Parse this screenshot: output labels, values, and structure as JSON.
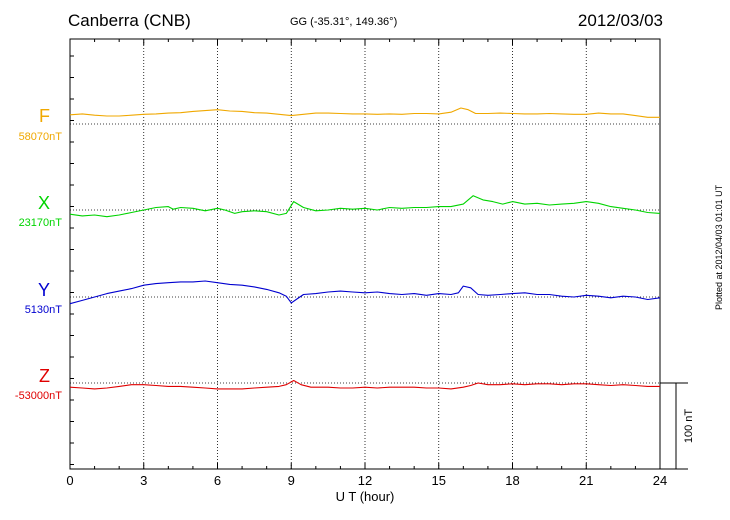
{
  "header": {
    "station": "Canberra (CNB)",
    "coords": "GG (-35.31°, 149.36°)",
    "date": "2012/03/03"
  },
  "plotted_note": "Plotted at 2012/04/03 01:01 UT",
  "scale_bar_label": "100 nT",
  "chart_data": {
    "type": "line",
    "xlabel": "U T (hour)",
    "xlim": [
      0,
      24
    ],
    "xticks": [
      "0",
      "3",
      "6",
      "9",
      "12",
      "15",
      "18",
      "21",
      "24"
    ],
    "grid": true,
    "scale_bar_nT": 100,
    "series": [
      {
        "name": "F",
        "baseline_label": "58070nT",
        "baseline_nT": 58070,
        "color": "#f0a800",
        "x": [
          0,
          0.5,
          1,
          1.5,
          2,
          2.5,
          3,
          3.5,
          4,
          4.5,
          5,
          5.5,
          6,
          6.5,
          7,
          7.5,
          8,
          8.5,
          9,
          9.5,
          10,
          10.5,
          11,
          11.5,
          12,
          12.5,
          13,
          13.5,
          14,
          14.5,
          15,
          15.5,
          15.9,
          16.2,
          16.5,
          17,
          17.5,
          18,
          18.5,
          19,
          19.5,
          20,
          20.5,
          21,
          21.5,
          22,
          22.5,
          23,
          23.5,
          24
        ],
        "y": [
          22,
          24,
          21,
          19,
          19,
          21,
          23,
          24,
          26,
          27,
          30,
          32,
          34,
          31,
          30,
          27,
          26,
          23,
          20,
          23,
          26,
          26,
          25,
          24,
          24,
          23,
          24,
          23,
          25,
          25,
          24,
          28,
          38,
          34,
          25,
          25,
          26,
          25,
          24,
          24,
          25,
          24,
          23,
          23,
          26,
          24,
          24,
          20,
          16,
          16
        ]
      },
      {
        "name": "X",
        "baseline_label": "23170nT",
        "baseline_nT": 23170,
        "color": "#00d400",
        "x": [
          0,
          0.5,
          1,
          1.5,
          2,
          2.5,
          3,
          3.5,
          4,
          4.2,
          4.5,
          5,
          5.5,
          6,
          6.3,
          6.7,
          7,
          7.5,
          8,
          8.5,
          8.8,
          9.1,
          9.5,
          10,
          10.5,
          11,
          11.5,
          12,
          12.5,
          13,
          13.5,
          14,
          14.5,
          15,
          15.5,
          16,
          16.4,
          16.8,
          17.2,
          17.6,
          18,
          18.5,
          19,
          19.5,
          20,
          20.5,
          21,
          21.5,
          22,
          22.5,
          23,
          23.5,
          24
        ],
        "y": [
          -10,
          -14,
          -12,
          -16,
          -12,
          -6,
          0,
          6,
          8,
          2,
          6,
          4,
          -2,
          4,
          0,
          -8,
          -4,
          -2,
          -4,
          -12,
          -8,
          20,
          6,
          -2,
          0,
          4,
          2,
          4,
          0,
          6,
          4,
          6,
          6,
          8,
          8,
          14,
          34,
          24,
          20,
          14,
          20,
          14,
          16,
          12,
          14,
          16,
          20,
          16,
          8,
          4,
          0,
          -6,
          -8
        ]
      },
      {
        "name": "Y",
        "baseline_label": "5130nT",
        "baseline_nT": 5130,
        "color": "#0000d0",
        "x": [
          0,
          0.5,
          1,
          1.5,
          2,
          2.5,
          3,
          3.5,
          4,
          4.5,
          5,
          5.5,
          6,
          6.5,
          7,
          7.5,
          8,
          8.5,
          8.8,
          9,
          9.2,
          9.5,
          10,
          10.5,
          11,
          11.5,
          12,
          12.5,
          13,
          13.5,
          14,
          14.5,
          15,
          15.5,
          15.8,
          16,
          16.3,
          16.6,
          17,
          17.5,
          18,
          18.5,
          19,
          19.5,
          20,
          20.5,
          21,
          21.5,
          22,
          22.5,
          23,
          23.5,
          24
        ],
        "y": [
          -16,
          -8,
          0,
          8,
          14,
          20,
          28,
          32,
          34,
          36,
          36,
          38,
          34,
          30,
          28,
          24,
          18,
          10,
          2,
          -14,
          -6,
          6,
          8,
          12,
          14,
          12,
          10,
          12,
          8,
          6,
          8,
          4,
          8,
          6,
          10,
          26,
          22,
          6,
          4,
          6,
          8,
          10,
          6,
          6,
          2,
          0,
          4,
          2,
          -2,
          2,
          0,
          -6,
          -2
        ]
      },
      {
        "name": "Z",
        "baseline_label": "-53000nT",
        "baseline_nT": -53000,
        "color": "#e00000",
        "x": [
          0,
          0.5,
          1,
          1.5,
          2,
          2.5,
          3,
          3.5,
          4,
          4.5,
          5,
          5.5,
          6,
          6.5,
          7,
          7.5,
          8,
          8.5,
          8.8,
          9.1,
          9.4,
          9.8,
          10.5,
          11,
          11.5,
          12,
          12.5,
          13,
          13.5,
          14,
          14.5,
          15,
          15.5,
          16,
          16.3,
          16.6,
          17,
          17.5,
          18,
          18.5,
          19,
          19.5,
          20,
          20.5,
          21,
          21.5,
          22,
          22.5,
          23,
          23.5,
          24
        ],
        "y": [
          -10,
          -12,
          -14,
          -12,
          -8,
          -4,
          -4,
          -6,
          -8,
          -8,
          -10,
          -12,
          -14,
          -14,
          -14,
          -12,
          -10,
          -8,
          -4,
          6,
          -4,
          -10,
          -10,
          -12,
          -12,
          -10,
          -12,
          -10,
          -10,
          -10,
          -12,
          -12,
          -14,
          -10,
          -6,
          0,
          -4,
          -4,
          -2,
          -4,
          -2,
          -2,
          -4,
          -2,
          -2,
          -4,
          -6,
          -4,
          -6,
          -8,
          -8
        ]
      }
    ]
  }
}
